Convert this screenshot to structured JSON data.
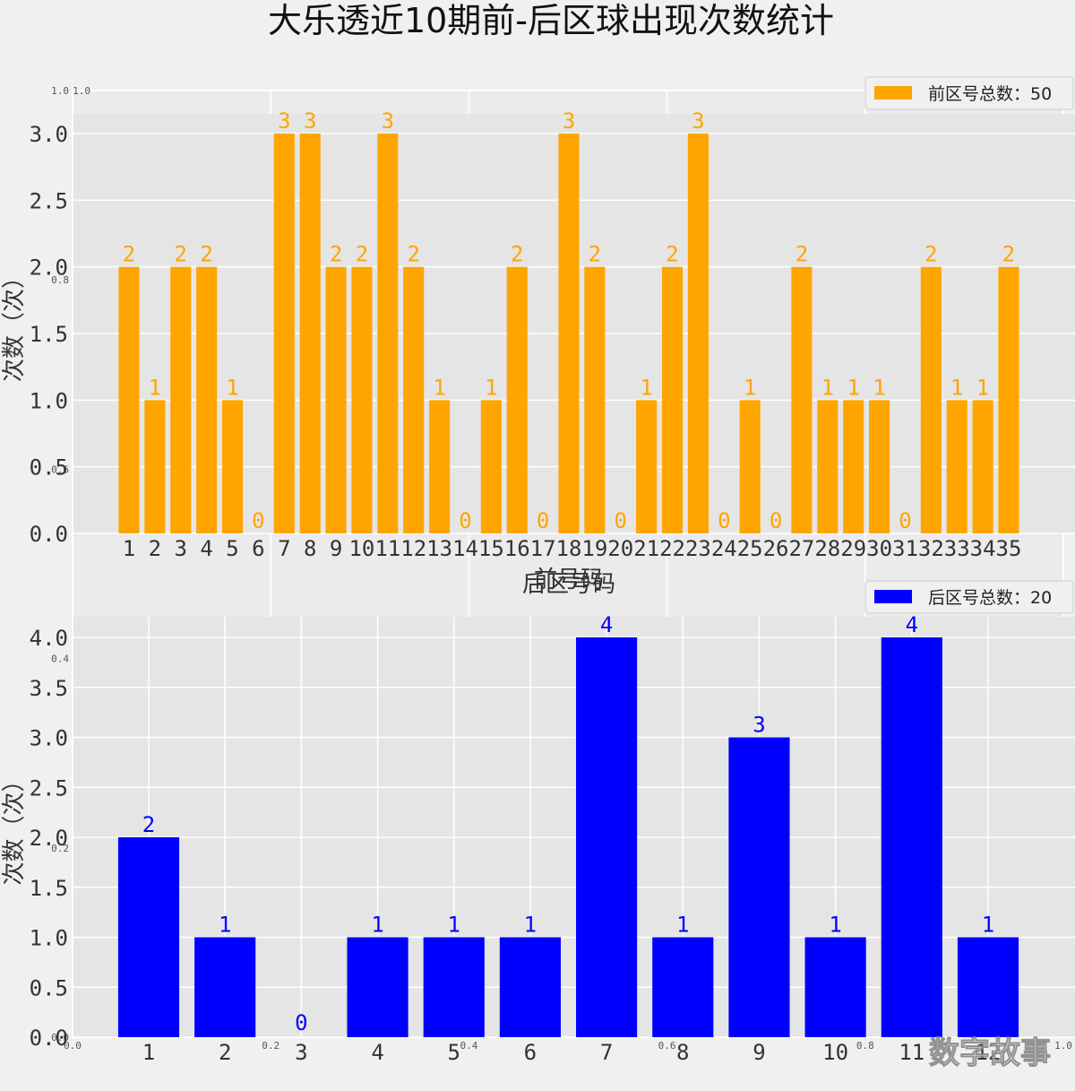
{
  "figure": {
    "title": "大乐透近10期前-后区球出现次数统计",
    "watermark": "数字故事",
    "background": "#f0f0f0",
    "panel_color": "#e5e5e5",
    "grid_color": "#ffffff",
    "background_axes": {
      "x_ticks": [
        "0.0",
        "0.2",
        "0.4",
        "0.6",
        "0.8",
        "1.0"
      ],
      "y_ticks": [
        "0.0",
        "0.2",
        "0.4",
        "0.6",
        "0.8",
        "1.0"
      ],
      "top_left_label": "1.0"
    }
  },
  "chart_data": [
    {
      "type": "bar",
      "color": "#FFA500",
      "categories": [
        "1",
        "2",
        "3",
        "4",
        "5",
        "6",
        "7",
        "8",
        "9",
        "10",
        "11",
        "12",
        "13",
        "14",
        "15",
        "16",
        "17",
        "18",
        "19",
        "20",
        "21",
        "22",
        "23",
        "24",
        "25",
        "26",
        "27",
        "28",
        "29",
        "30",
        "31",
        "32",
        "33",
        "34",
        "35"
      ],
      "values": [
        2,
        1,
        2,
        2,
        1,
        0,
        3,
        3,
        2,
        2,
        3,
        2,
        1,
        0,
        1,
        2,
        0,
        3,
        2,
        0,
        1,
        2,
        3,
        0,
        1,
        0,
        2,
        1,
        1,
        1,
        0,
        2,
        1,
        1,
        2
      ],
      "series": [
        {
          "name": "前区号总数：50",
          "values": [
            2,
            1,
            2,
            2,
            1,
            0,
            3,
            3,
            2,
            2,
            3,
            2,
            1,
            0,
            1,
            2,
            0,
            3,
            2,
            0,
            1,
            2,
            3,
            0,
            1,
            0,
            2,
            1,
            1,
            1,
            0,
            2,
            1,
            1,
            2
          ]
        }
      ],
      "xlabel": "前号码",
      "ylabel": "次数（次）",
      "ylim": [
        0,
        3.0
      ],
      "yticks": [
        "0.0",
        "0.5",
        "1.0",
        "1.5",
        "2.0",
        "2.5",
        "3.0"
      ],
      "grid": true,
      "legend": "top-right",
      "data_labels": true
    },
    {
      "type": "bar",
      "color": "#0000FF",
      "categories": [
        "1",
        "2",
        "3",
        "4",
        "5",
        "6",
        "7",
        "8",
        "9",
        "10",
        "11",
        "12"
      ],
      "values": [
        2,
        1,
        0,
        1,
        1,
        1,
        4,
        1,
        3,
        1,
        4,
        1
      ],
      "series": [
        {
          "name": "后区号总数：20",
          "values": [
            2,
            1,
            0,
            1,
            1,
            1,
            4,
            1,
            3,
            1,
            4,
            1
          ]
        }
      ],
      "xlabel": "后区号码",
      "ylabel": "次数（次）",
      "ylim": [
        0,
        4.0
      ],
      "yticks": [
        "0.0",
        "0.5",
        "1.0",
        "1.5",
        "2.0",
        "2.5",
        "3.0",
        "3.5",
        "4.0"
      ],
      "grid": true,
      "legend": "top-right",
      "data_labels": true
    }
  ]
}
